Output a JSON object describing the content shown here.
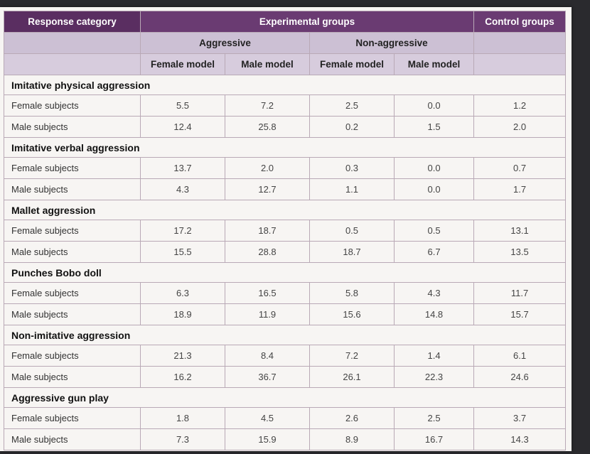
{
  "header": {
    "response_category": "Response category",
    "experimental_groups": "Experimental groups",
    "control_groups": "Control groups",
    "aggressive": "Aggressive",
    "non_aggressive": "Non-aggressive",
    "female_model_1": "Female model",
    "male_model_1": "Male model",
    "female_model_2": "Female model",
    "male_model_2": "Male model"
  },
  "sections": [
    {
      "title": "Imitative physical aggression",
      "rows": [
        {
          "label": "Female subjects",
          "values": [
            "5.5",
            "7.2",
            "2.5",
            "0.0",
            "1.2"
          ]
        },
        {
          "label": "Male subjects",
          "values": [
            "12.4",
            "25.8",
            "0.2",
            "1.5",
            "2.0"
          ]
        }
      ]
    },
    {
      "title": "Imitative verbal aggression",
      "rows": [
        {
          "label": "Female subjects",
          "values": [
            "13.7",
            "2.0",
            "0.3",
            "0.0",
            "0.7"
          ]
        },
        {
          "label": "Male subjects",
          "values": [
            "4.3",
            "12.7",
            "1.1",
            "0.0",
            "1.7"
          ]
        }
      ]
    },
    {
      "title": "Mallet aggression",
      "rows": [
        {
          "label": "Female subjects",
          "values": [
            "17.2",
            "18.7",
            "0.5",
            "0.5",
            "13.1"
          ]
        },
        {
          "label": "Male subjects",
          "values": [
            "15.5",
            "28.8",
            "18.7",
            "6.7",
            "13.5"
          ]
        }
      ]
    },
    {
      "title": "Punches Bobo doll",
      "rows": [
        {
          "label": "Female subjects",
          "values": [
            "6.3",
            "16.5",
            "5.8",
            "4.3",
            "11.7"
          ]
        },
        {
          "label": "Male subjects",
          "values": [
            "18.9",
            "11.9",
            "15.6",
            "14.8",
            "15.7"
          ]
        }
      ]
    },
    {
      "title": "Non-imitative aggression",
      "rows": [
        {
          "label": "Female subjects",
          "values": [
            "21.3",
            "8.4",
            "7.2",
            "1.4",
            "6.1"
          ]
        },
        {
          "label": "Male subjects",
          "values": [
            "16.2",
            "36.7",
            "26.1",
            "22.3",
            "24.6"
          ]
        }
      ]
    },
    {
      "title": "Aggressive gun play",
      "rows": [
        {
          "label": "Female subjects",
          "values": [
            "1.8",
            "4.5",
            "2.6",
            "2.5",
            "3.7"
          ]
        },
        {
          "label": "Male subjects",
          "values": [
            "7.3",
            "15.9",
            "8.9",
            "16.7",
            "14.3"
          ]
        }
      ]
    }
  ]
}
